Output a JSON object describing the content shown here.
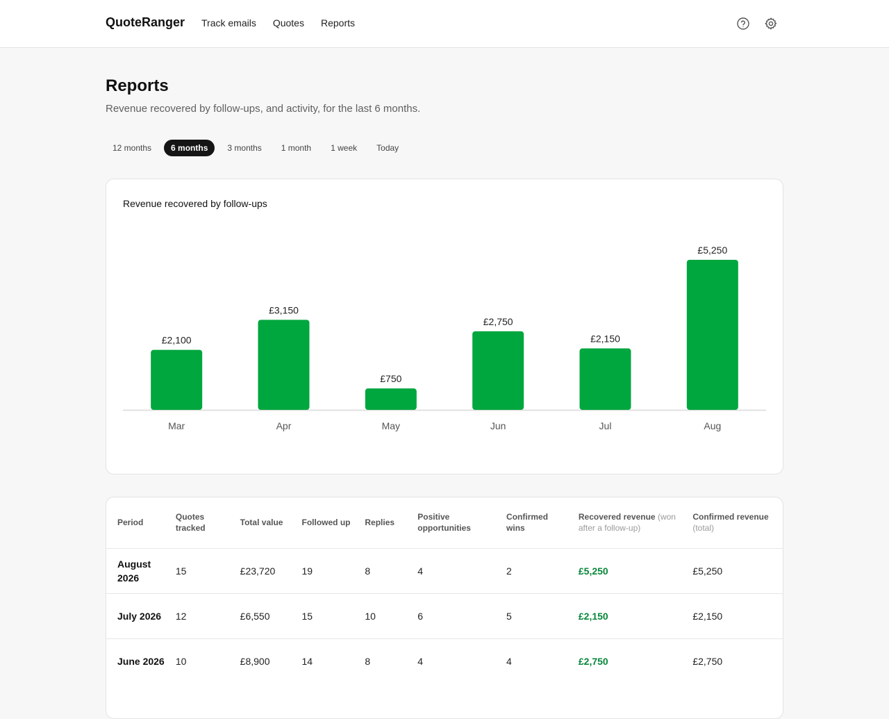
{
  "header": {
    "brand": "QuoteRanger",
    "nav": [
      "Track emails",
      "Quotes",
      "Reports"
    ]
  },
  "icons": {
    "help": "help-circle-icon",
    "settings": "gear-icon"
  },
  "page": {
    "title": "Reports",
    "subtitle": "Revenue recovered by follow-ups, and activity, for the last 6 months."
  },
  "periods": [
    "12 months",
    "6 months",
    "3 months",
    "1 month",
    "1 week",
    "Today"
  ],
  "selected_period": "6 months",
  "colors": {
    "bar": "#00a63e",
    "recovered_text": "#07873a",
    "active_pill": "#151515"
  },
  "chart_data": {
    "type": "bar",
    "title": "Revenue recovered by follow-ups",
    "categories": [
      "Mar",
      "Apr",
      "May",
      "Jun",
      "Jul",
      "Aug"
    ],
    "values": [
      2100,
      3150,
      750,
      2750,
      2150,
      5250
    ],
    "value_labels": [
      "£2,100",
      "£3,150",
      "£750",
      "£2,750",
      "£2,150",
      "£5,250"
    ],
    "xlabel": "",
    "ylabel": "",
    "ylim": [
      0,
      5250
    ],
    "grid": false
  },
  "table": {
    "headers": [
      {
        "label": "Period",
        "note": ""
      },
      {
        "label": "Quotes tracked",
        "note": ""
      },
      {
        "label": "Total value",
        "note": ""
      },
      {
        "label": "Followed up",
        "note": ""
      },
      {
        "label": "Replies",
        "note": ""
      },
      {
        "label": "Positive opportunities",
        "note": ""
      },
      {
        "label": "Confirmed wins",
        "note": ""
      },
      {
        "label": "Recovered revenue",
        "note": "(won after a follow-up)"
      },
      {
        "label": "Confirmed revenue",
        "note": "(total)"
      }
    ],
    "rows": [
      [
        "August 2026",
        "15",
        "£23,720",
        "19",
        "8",
        "4",
        "2",
        "£5,250",
        "£5,250"
      ],
      [
        "July 2026",
        "12",
        "£6,550",
        "15",
        "10",
        "6",
        "5",
        "£2,150",
        "£2,150"
      ],
      [
        "June 2026",
        "10",
        "£8,900",
        "14",
        "8",
        "4",
        "4",
        "£2,750",
        "£2,750"
      ]
    ]
  }
}
